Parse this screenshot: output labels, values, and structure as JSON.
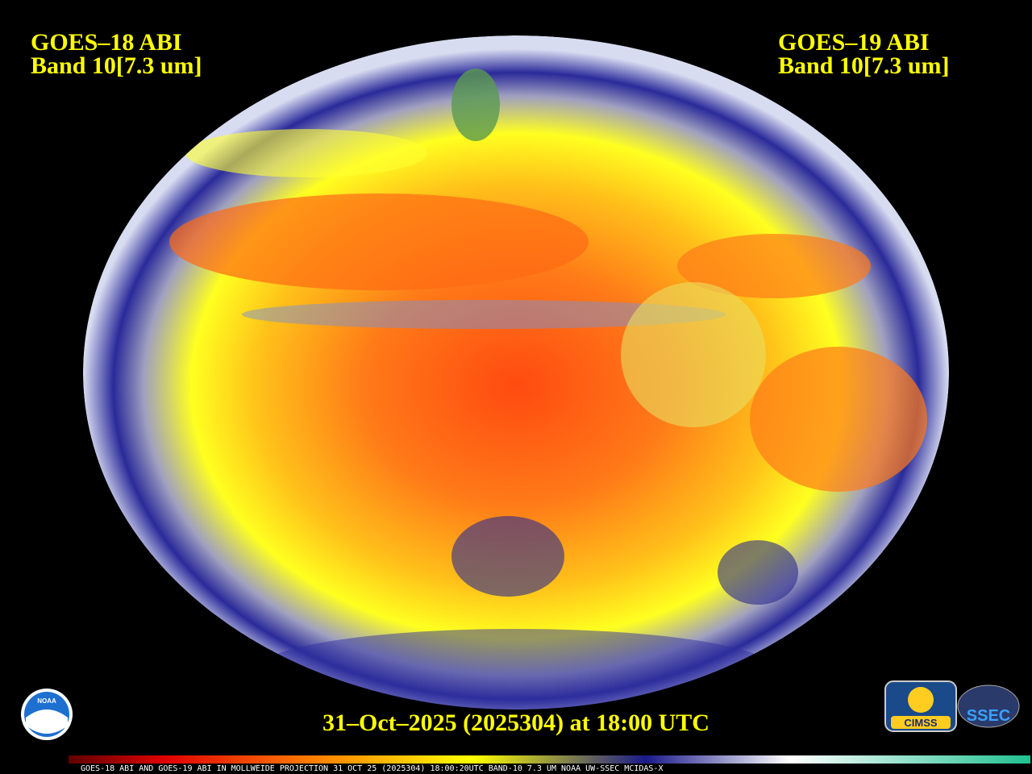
{
  "header": {
    "left": {
      "satellite": "GOES–18 ABI",
      "band": "Band 10[7.3 um]"
    },
    "right": {
      "satellite": "GOES–19 ABI",
      "band": "Band 10[7.3 um]"
    }
  },
  "timestamp": "31–Oct–2025 (2025304) at 18:00 UTC",
  "colorbar_caption": "GOES-18 ABI AND GOES-19 ABI IN MOLLWEIDE PROJECTION 31 OCT 25 (2025304) 18:00:20UTC BAND-10 7.3 UM NOAA UW-SSEC MCIDAS-X",
  "logos": {
    "noaa": "NOAA",
    "cimss": "CIMSS",
    "ssec": "SSEC"
  }
}
